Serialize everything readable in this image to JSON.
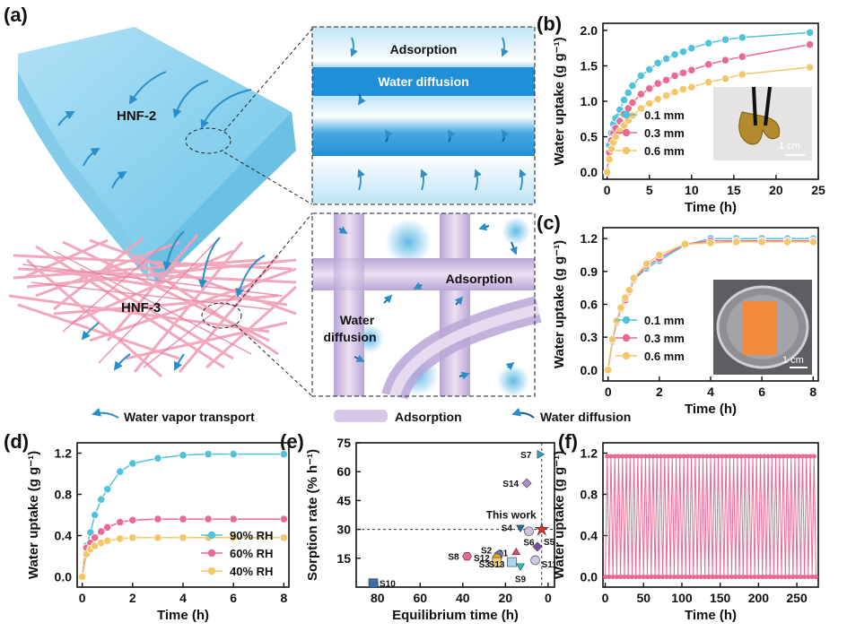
{
  "panels": {
    "a": {
      "label": "(a)",
      "top_material": "HNF-2",
      "bottom_material": "HNF-3",
      "top_zoom": {
        "adsorption": "Adsorption",
        "diffusion": "Water diffusion"
      },
      "bottom_zoom": {
        "adsorption": "Adsorption",
        "diffusion_line1": "Water",
        "diffusion_line2": "diffusion"
      }
    },
    "b": {
      "label": "(b)",
      "scale": "1 cm"
    },
    "c": {
      "label": "(c)",
      "scale": "1 cm"
    },
    "d": {
      "label": "(d)"
    },
    "e": {
      "label": "(e)",
      "highlight": "This work"
    },
    "f": {
      "label": "(f)"
    }
  },
  "legend_bottom": {
    "vapor": "Water vapor transport",
    "adsorption": "Adsorption",
    "diffusion": "Water diffusion"
  },
  "colors": {
    "blue": "#4fc3d9",
    "pink": "#e86a90",
    "yellow": "#f3c66a",
    "red": "#e0312d",
    "membrane": "#8fd0ec",
    "fiber": "#f2a3b8",
    "arrow": "#2a8fc8"
  },
  "chart_data": [
    {
      "id": "b",
      "type": "line",
      "xlabel": "Time (h)",
      "ylabel": "Water uptake (g g⁻¹)",
      "xlim": [
        -0.5,
        25
      ],
      "ylim": [
        -0.1,
        2.1
      ],
      "xticks": [
        0,
        5,
        10,
        15,
        20,
        25
      ],
      "yticks": [
        0.0,
        0.5,
        1.0,
        1.5,
        2.0
      ],
      "legend_position": "middle-left",
      "series": [
        {
          "name": "0.1 mm",
          "color": "#4fc3d9",
          "x": [
            0,
            0.25,
            0.5,
            0.75,
            1,
            1.5,
            2,
            2.5,
            3,
            4,
            5,
            6,
            7,
            8,
            9,
            10,
            12,
            14,
            16,
            24
          ],
          "y": [
            0,
            0.38,
            0.55,
            0.68,
            0.76,
            0.88,
            1.02,
            1.12,
            1.22,
            1.36,
            1.45,
            1.54,
            1.6,
            1.66,
            1.7,
            1.75,
            1.82,
            1.87,
            1.9,
            1.97
          ]
        },
        {
          "name": "0.3 mm",
          "color": "#e86a90",
          "x": [
            0,
            0.25,
            0.5,
            0.75,
            1,
            1.5,
            2,
            2.5,
            3,
            4,
            5,
            6,
            7,
            8,
            9,
            10,
            12,
            14,
            16,
            24
          ],
          "y": [
            0,
            0.28,
            0.45,
            0.55,
            0.62,
            0.72,
            0.82,
            0.9,
            0.98,
            1.1,
            1.18,
            1.25,
            1.3,
            1.36,
            1.4,
            1.44,
            1.52,
            1.58,
            1.63,
            1.8
          ]
        },
        {
          "name": "0.6 mm",
          "color": "#f3c66a",
          "x": [
            0,
            0.25,
            0.5,
            0.75,
            1,
            1.5,
            2,
            2.5,
            3,
            4,
            5,
            6,
            7,
            8,
            9,
            10,
            12,
            14,
            16,
            24
          ],
          "y": [
            0,
            0.18,
            0.33,
            0.42,
            0.5,
            0.58,
            0.66,
            0.73,
            0.8,
            0.9,
            0.97,
            1.03,
            1.08,
            1.13,
            1.17,
            1.2,
            1.27,
            1.32,
            1.38,
            1.48
          ]
        }
      ]
    },
    {
      "id": "c",
      "type": "line",
      "xlabel": "Time (h)",
      "ylabel": "Water uptake (g g⁻¹)",
      "xlim": [
        -0.2,
        8.2
      ],
      "ylim": [
        -0.1,
        1.3
      ],
      "xticks": [
        0,
        2,
        4,
        6,
        8
      ],
      "yticks": [
        0.0,
        0.3,
        0.6,
        0.9,
        1.2
      ],
      "legend_position": "bottom-left",
      "series": [
        {
          "name": "0.1 mm",
          "color": "#4fc3d9",
          "x": [
            0,
            0.17,
            0.33,
            0.5,
            0.67,
            0.83,
            1,
            1.5,
            2,
            3,
            4,
            5,
            6,
            7,
            8
          ],
          "y": [
            0,
            0.26,
            0.43,
            0.55,
            0.63,
            0.71,
            0.82,
            0.93,
            1.0,
            1.14,
            1.2,
            1.2,
            1.2,
            1.2,
            1.2
          ]
        },
        {
          "name": "0.3 mm",
          "color": "#e86a90",
          "x": [
            0,
            0.17,
            0.33,
            0.5,
            0.67,
            0.83,
            1,
            1.5,
            2,
            3,
            4,
            5,
            6,
            7,
            8
          ],
          "y": [
            0,
            0.27,
            0.44,
            0.56,
            0.64,
            0.72,
            0.83,
            0.95,
            1.02,
            1.15,
            1.18,
            1.18,
            1.18,
            1.18,
            1.18
          ]
        },
        {
          "name": "0.6 mm",
          "color": "#f3c66a",
          "x": [
            0,
            0.17,
            0.33,
            0.5,
            0.67,
            0.83,
            1,
            1.5,
            2,
            3,
            4,
            5,
            6,
            7,
            8
          ],
          "y": [
            0,
            0.28,
            0.45,
            0.57,
            0.66,
            0.73,
            0.84,
            0.97,
            1.05,
            1.15,
            1.16,
            1.17,
            1.17,
            1.17,
            1.17
          ]
        }
      ]
    },
    {
      "id": "d",
      "type": "line",
      "xlabel": "Time (h)",
      "ylabel": "Water uptake (g g⁻¹)",
      "xlim": [
        -0.2,
        8.2
      ],
      "ylim": [
        -0.1,
        1.3
      ],
      "xticks": [
        0,
        2,
        4,
        6,
        8
      ],
      "yticks": [
        0.0,
        0.4,
        0.8,
        1.2
      ],
      "legend_position": "bottom-right",
      "series": [
        {
          "name": "90% RH",
          "color": "#4fc3d9",
          "x": [
            0,
            0.17,
            0.33,
            0.5,
            0.75,
            1,
            1.5,
            2,
            3,
            4,
            5,
            6,
            8
          ],
          "y": [
            0,
            0.3,
            0.43,
            0.6,
            0.75,
            0.85,
            1.02,
            1.1,
            1.15,
            1.18,
            1.19,
            1.19,
            1.19
          ]
        },
        {
          "name": "60% RH",
          "color": "#e86a90",
          "x": [
            0,
            0.17,
            0.33,
            0.5,
            0.75,
            1,
            1.5,
            2,
            3,
            4,
            5,
            6,
            8
          ],
          "y": [
            0,
            0.28,
            0.33,
            0.38,
            0.44,
            0.48,
            0.53,
            0.55,
            0.56,
            0.56,
            0.56,
            0.56,
            0.56
          ]
        },
        {
          "name": "40% RH",
          "color": "#f3c66a",
          "x": [
            0,
            0.17,
            0.33,
            0.5,
            0.75,
            1,
            1.5,
            2,
            3,
            4,
            5,
            6,
            8
          ],
          "y": [
            0,
            0.22,
            0.27,
            0.3,
            0.33,
            0.35,
            0.37,
            0.38,
            0.38,
            0.38,
            0.38,
            0.38,
            0.38
          ]
        }
      ]
    },
    {
      "id": "e",
      "type": "scatter",
      "xlabel": "Equilibrium time (h)",
      "ylabel": "Sorption rate (% h⁻¹)",
      "xlim": [
        90,
        -3
      ],
      "ylim": [
        0,
        75
      ],
      "x_reversed": true,
      "xticks": [
        80,
        60,
        40,
        20,
        0
      ],
      "yticks": [
        15,
        30,
        45,
        60,
        75
      ],
      "ref_lines": {
        "x": 3,
        "y": 30
      },
      "points": [
        {
          "label": "S7",
          "x": 4,
          "y": 69,
          "color": "#2aa6d6",
          "marker": "triangle-right"
        },
        {
          "label": "S14",
          "x": 10,
          "y": 54,
          "color": "#b08cc4",
          "marker": "diamond"
        },
        {
          "label": "This work",
          "x": 3,
          "y": 30,
          "color": "#e0312d",
          "marker": "star"
        },
        {
          "label": "S4",
          "x": 13,
          "y": 31,
          "color": "#1f6f9e",
          "marker": "triangle-down"
        },
        {
          "label": "S6",
          "x": 9,
          "y": 29,
          "color": "#c9c1df",
          "marker": "circle"
        },
        {
          "label": "S5",
          "x": 5,
          "y": 21,
          "color": "#7d4ea3",
          "marker": "diamond"
        },
        {
          "label": "S1",
          "x": 15,
          "y": 18,
          "color": "#e2487a",
          "marker": "triangle-up"
        },
        {
          "label": "S2",
          "x": 23,
          "y": 17,
          "color": "#6a7fb3",
          "marker": "pentagon"
        },
        {
          "label": "S8",
          "x": 38,
          "y": 16,
          "color": "#e86a90",
          "marker": "hexagon"
        },
        {
          "label": "S12",
          "x": 24,
          "y": 15,
          "color": "#f5a623",
          "marker": "circle"
        },
        {
          "label": "S3",
          "x": 24,
          "y": 13,
          "color": "#f4d06c",
          "marker": "square"
        },
        {
          "label": "S13",
          "x": 17,
          "y": 13,
          "color": "#a7d8ef",
          "marker": "square"
        },
        {
          "label": "S11",
          "x": 6,
          "y": 14,
          "color": "#cfc7e6",
          "marker": "circle"
        },
        {
          "label": "S9",
          "x": 13,
          "y": 11,
          "color": "#22c1c1",
          "marker": "triangle-down"
        },
        {
          "label": "S10",
          "x": 82,
          "y": 2,
          "color": "#3a6ea8",
          "marker": "square"
        }
      ]
    },
    {
      "id": "f",
      "type": "line",
      "xlabel": "Time (h)",
      "ylabel": "Water uptake (g g⁻¹)",
      "xlim": [
        -3,
        278
      ],
      "ylim": [
        -0.1,
        1.3
      ],
      "xticks": [
        0,
        50,
        100,
        150,
        200,
        250
      ],
      "yticks": [
        0.0,
        0.4,
        0.8,
        1.2
      ],
      "series": [
        {
          "name": "",
          "color": "#e86a90",
          "cycles": 55,
          "cycle_period_h": 5,
          "max_uptake": 1.17,
          "min_uptake": 0.0
        }
      ]
    }
  ]
}
